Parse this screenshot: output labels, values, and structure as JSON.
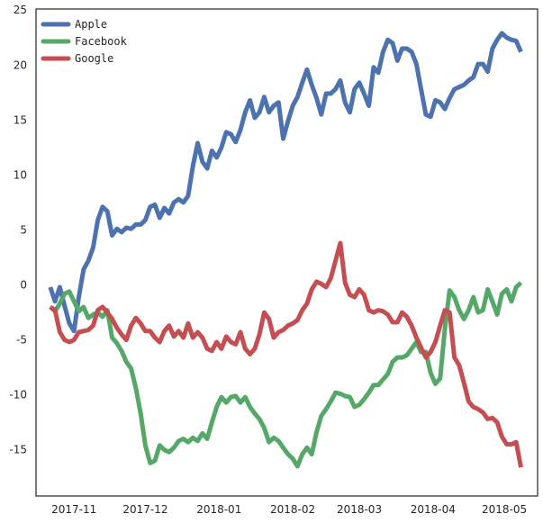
{
  "chart_data": {
    "type": "line",
    "title": "",
    "xlabel": "",
    "ylabel": "",
    "ylim": [
      -19.2,
      25.1
    ],
    "xlim": [
      "2017-10-16",
      "2018-05-15"
    ],
    "grid": false,
    "legend_placement": "top-left",
    "y_ticks": [
      -15,
      -10,
      -5,
      0,
      5,
      10,
      15,
      20,
      25
    ],
    "x_ticks": [
      {
        "date": "2017-11-01",
        "label": "2017-11"
      },
      {
        "date": "2017-12-01",
        "label": "2017-12"
      },
      {
        "date": "2018-01-01",
        "label": "2018-01"
      },
      {
        "date": "2018-02-01",
        "label": "2018-02"
      },
      {
        "date": "2018-03-01",
        "label": "2018-03"
      },
      {
        "date": "2018-04-01",
        "label": "2018-04"
      },
      {
        "date": "2018-05-01",
        "label": "2018-05"
      }
    ],
    "x": [
      "2017-10-22",
      "2017-10-24",
      "2017-10-26",
      "2017-10-28",
      "2017-10-30",
      "2017-11-01",
      "2017-11-03",
      "2017-11-05",
      "2017-11-07",
      "2017-11-09",
      "2017-11-11",
      "2017-11-13",
      "2017-11-15",
      "2017-11-17",
      "2017-11-19",
      "2017-11-21",
      "2017-11-23",
      "2017-11-25",
      "2017-11-27",
      "2017-11-29",
      "2017-12-01",
      "2017-12-03",
      "2017-12-05",
      "2017-12-07",
      "2017-12-09",
      "2017-12-11",
      "2017-12-13",
      "2017-12-15",
      "2017-12-17",
      "2017-12-19",
      "2017-12-21",
      "2017-12-23",
      "2017-12-25",
      "2017-12-27",
      "2017-12-29",
      "2017-12-31",
      "2018-01-02",
      "2018-01-04",
      "2018-01-06",
      "2018-01-08",
      "2018-01-10",
      "2018-01-12",
      "2018-01-14",
      "2018-01-16",
      "2018-01-18",
      "2018-01-20",
      "2018-01-22",
      "2018-01-24",
      "2018-01-26",
      "2018-01-28",
      "2018-01-30",
      "2018-02-01",
      "2018-02-03",
      "2018-02-05",
      "2018-02-07",
      "2018-02-09",
      "2018-02-11",
      "2018-02-13",
      "2018-02-15",
      "2018-02-17",
      "2018-02-19",
      "2018-02-21",
      "2018-02-23",
      "2018-02-25",
      "2018-02-27",
      "2018-03-01",
      "2018-03-03",
      "2018-03-05",
      "2018-03-07",
      "2018-03-09",
      "2018-03-11",
      "2018-03-13",
      "2018-03-15",
      "2018-03-17",
      "2018-03-19",
      "2018-03-21",
      "2018-03-23",
      "2018-03-25",
      "2018-03-27",
      "2018-03-29",
      "2018-03-31",
      "2018-04-02",
      "2018-04-04",
      "2018-04-06",
      "2018-04-08",
      "2018-04-10",
      "2018-04-12",
      "2018-04-14",
      "2018-04-16",
      "2018-04-18",
      "2018-04-20",
      "2018-04-22",
      "2018-04-24",
      "2018-04-26",
      "2018-04-28",
      "2018-04-30",
      "2018-05-02",
      "2018-05-04",
      "2018-05-06",
      "2018-05-08"
    ],
    "series": [
      {
        "name": "Apple",
        "color": "#4c72b0",
        "values": [
          -0.2,
          -1.5,
          -0.2,
          -1.9,
          -3.5,
          -4.2,
          -1.1,
          1.4,
          2.2,
          3.4,
          5.9,
          7.1,
          6.7,
          4.5,
          5.1,
          4.8,
          5.2,
          5.1,
          5.5,
          5.5,
          5.9,
          7.1,
          7.3,
          6.1,
          7.0,
          6.5,
          7.5,
          7.8,
          7.5,
          8.1,
          10.8,
          12.9,
          11.2,
          10.6,
          12.2,
          11.6,
          12.5,
          13.9,
          13.7,
          13.0,
          14.1,
          15.7,
          16.8,
          15.2,
          15.7,
          17.1,
          15.7,
          16.3,
          16.6,
          13.3,
          14.9,
          16.3,
          17.1,
          18.4,
          19.6,
          18.2,
          17.0,
          15.5,
          17.4,
          17.4,
          17.8,
          18.6,
          16.6,
          15.7,
          17.8,
          18.4,
          17.4,
          16.3,
          19.8,
          19.3,
          21.2,
          22.3,
          22.0,
          20.4,
          21.5,
          21.5,
          21.2,
          20.1,
          17.8,
          15.5,
          15.3,
          16.8,
          16.6,
          16.0,
          17.0,
          17.8,
          18.0,
          18.2,
          18.6,
          18.9,
          20.1,
          20.1,
          19.4,
          21.5,
          22.3,
          22.9,
          22.5,
          22.3,
          22.2,
          21.2
        ]
      },
      {
        "name": "Facebook",
        "color": "#55a868",
        "values": [
          -2.0,
          -2.4,
          -1.7,
          -0.8,
          -0.6,
          -1.5,
          -2.4,
          -2.0,
          -3.0,
          -2.7,
          -2.5,
          -2.9,
          -2.3,
          -4.8,
          -5.3,
          -6.0,
          -7.0,
          -7.6,
          -9.4,
          -11.7,
          -14.6,
          -16.2,
          -16.0,
          -14.6,
          -15.0,
          -15.2,
          -14.8,
          -14.2,
          -14.0,
          -14.3,
          -13.9,
          -14.2,
          -13.5,
          -14.0,
          -12.5,
          -11.1,
          -10.2,
          -10.7,
          -10.2,
          -10.1,
          -10.7,
          -10.2,
          -11.1,
          -11.7,
          -12.2,
          -13.0,
          -14.3,
          -13.9,
          -14.2,
          -14.8,
          -15.4,
          -15.8,
          -16.5,
          -15.4,
          -14.8,
          -15.4,
          -13.4,
          -11.9,
          -11.3,
          -10.6,
          -9.8,
          -9.9,
          -10.1,
          -10.2,
          -11.1,
          -10.9,
          -10.4,
          -9.8,
          -9.1,
          -9.1,
          -8.6,
          -8.1,
          -7.0,
          -6.6,
          -6.6,
          -6.4,
          -5.8,
          -5.2,
          -6.1,
          -6.1,
          -8.0,
          -9.0,
          -8.5,
          -4.0,
          -0.5,
          -1.1,
          -2.3,
          -3.1,
          -2.3,
          -1.1,
          -2.5,
          -2.3,
          -0.4,
          -1.5,
          -2.7,
          -0.8,
          -0.4,
          -1.5,
          -0.2,
          0.2
        ]
      },
      {
        "name": "Google",
        "color": "#c44e52",
        "values": [
          -2.0,
          -2.3,
          -4.3,
          -5.0,
          -5.2,
          -5.0,
          -4.3,
          -4.2,
          -4.1,
          -3.7,
          -2.3,
          -2.0,
          -2.5,
          -3.1,
          -3.9,
          -4.5,
          -5.0,
          -3.7,
          -3.0,
          -3.5,
          -4.2,
          -4.2,
          -4.8,
          -5.2,
          -4.2,
          -3.7,
          -4.7,
          -4.2,
          -4.8,
          -3.5,
          -4.8,
          -4.3,
          -4.8,
          -5.8,
          -6.0,
          -5.2,
          -5.8,
          -4.7,
          -5.2,
          -5.4,
          -4.3,
          -5.8,
          -6.3,
          -5.8,
          -4.5,
          -2.5,
          -3.1,
          -4.8,
          -4.3,
          -4.1,
          -3.7,
          -3.5,
          -3.2,
          -2.3,
          -1.7,
          -0.4,
          0.3,
          0.1,
          -0.2,
          0.6,
          2.2,
          3.8,
          0.2,
          -0.9,
          -1.1,
          -0.4,
          -0.9,
          -2.3,
          -2.5,
          -2.3,
          -2.4,
          -2.7,
          -3.4,
          -3.4,
          -2.5,
          -2.9,
          -3.7,
          -4.8,
          -5.7,
          -6.6,
          -6.1,
          -5.2,
          -3.7,
          -2.3,
          -2.5,
          -6.6,
          -7.3,
          -8.9,
          -10.6,
          -11.1,
          -11.3,
          -11.6,
          -12.2,
          -12.1,
          -12.5,
          -13.8,
          -14.5,
          -14.5,
          -14.3,
          -16.6
        ]
      }
    ]
  }
}
